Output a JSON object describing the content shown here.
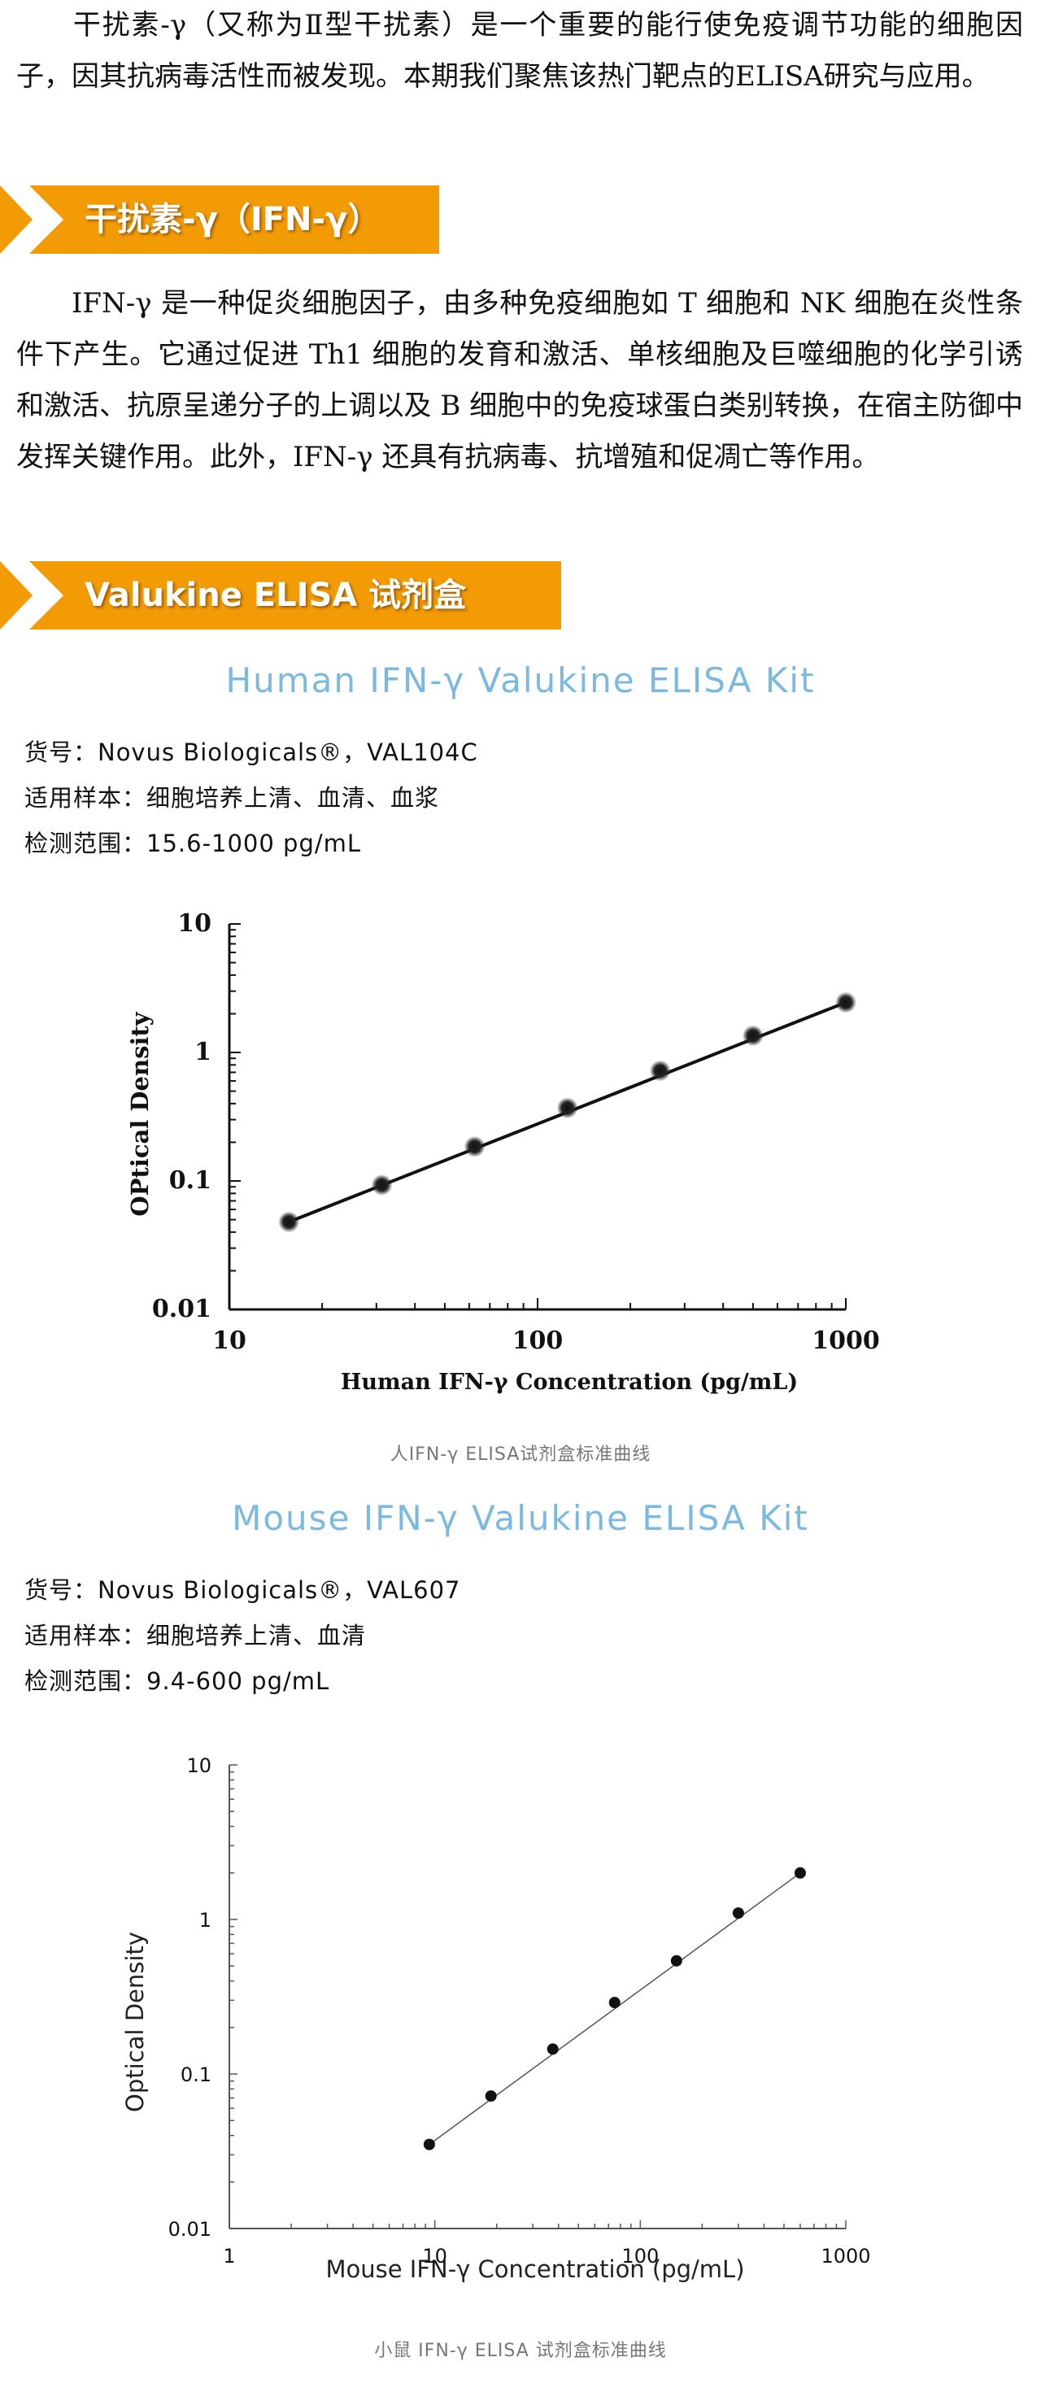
{
  "intro": "干扰素-γ（又称为Ⅱ型干扰素）是一个重要的能行使免疫调节功能的细胞因子，因其抗病毒活性而被发现。本期我们聚焦该热门靶点的ELISA研究与应用。",
  "section1": {
    "heading": "干扰素-γ（IFN-γ）",
    "body": "IFN-γ 是一种促炎细胞因子，由多种免疫细胞如 T 细胞和 NK 细胞在炎性条件下产生。它通过促进 Th1 细胞的发育和激活、单核细胞及巨噬细胞的化学引诱和激活、抗原呈递分子的上调以及 B 细胞中的免疫球蛋白类别转换，在宿主防御中发挥关键作用。此外，IFN-γ 还具有抗病毒、抗增殖和促凋亡等作用。"
  },
  "section2": {
    "heading": "Valukine ELISA 试剂盒"
  },
  "kits": [
    {
      "title": "Human IFN-γ Valukine ELISA Kit",
      "catalog": "货号：Novus Biologicals®，VAL104C",
      "samples": "适用样本：细胞培养上清、血清、血浆",
      "range": "检测范围：15.6-1000 pg/mL",
      "caption": "人IFN-γ ELISA试剂盒标准曲线"
    },
    {
      "title": "Mouse IFN-γ Valukine ELISA Kit",
      "catalog": "货号：Novus Biologicals®，VAL607",
      "samples": "适用样本：细胞培养上清、血清",
      "range": "检测范围：9.4-600 pg/mL",
      "caption": "小鼠 IFN-γ ELISA 试剂盒标准曲线"
    }
  ],
  "chart_data": [
    {
      "type": "scatter",
      "xlabel": "Human IFN-γ Concentration (pg/mL)",
      "ylabel": "OPtical Density",
      "xscale": "log",
      "yscale": "log",
      "xlim": [
        10,
        1000
      ],
      "ylim": [
        0.01,
        10
      ],
      "xticks": [
        "10",
        "100",
        "1000"
      ],
      "yticks": [
        "0.01",
        "0.1",
        "1",
        "10"
      ],
      "x": [
        15.6,
        31.25,
        62.5,
        125,
        250,
        500,
        1000
      ],
      "y": [
        0.048,
        0.093,
        0.185,
        0.37,
        0.72,
        1.35,
        2.45
      ],
      "fit_line": true
    },
    {
      "type": "scatter",
      "xlabel": "Mouse IFN-γ Concentration (pg/mL)",
      "ylabel": "Optical Density",
      "xscale": "log",
      "yscale": "log",
      "xlim": [
        1,
        1000
      ],
      "ylim": [
        0.01,
        10
      ],
      "xticks": [
        "1",
        "10",
        "100",
        "1000"
      ],
      "yticks": [
        "0.01",
        "0.1",
        "1",
        "10"
      ],
      "x": [
        9.4,
        18.75,
        37.5,
        75,
        150,
        300,
        600
      ],
      "y": [
        0.035,
        0.072,
        0.145,
        0.29,
        0.54,
        1.1,
        2.0
      ],
      "fit_line": true
    }
  ]
}
